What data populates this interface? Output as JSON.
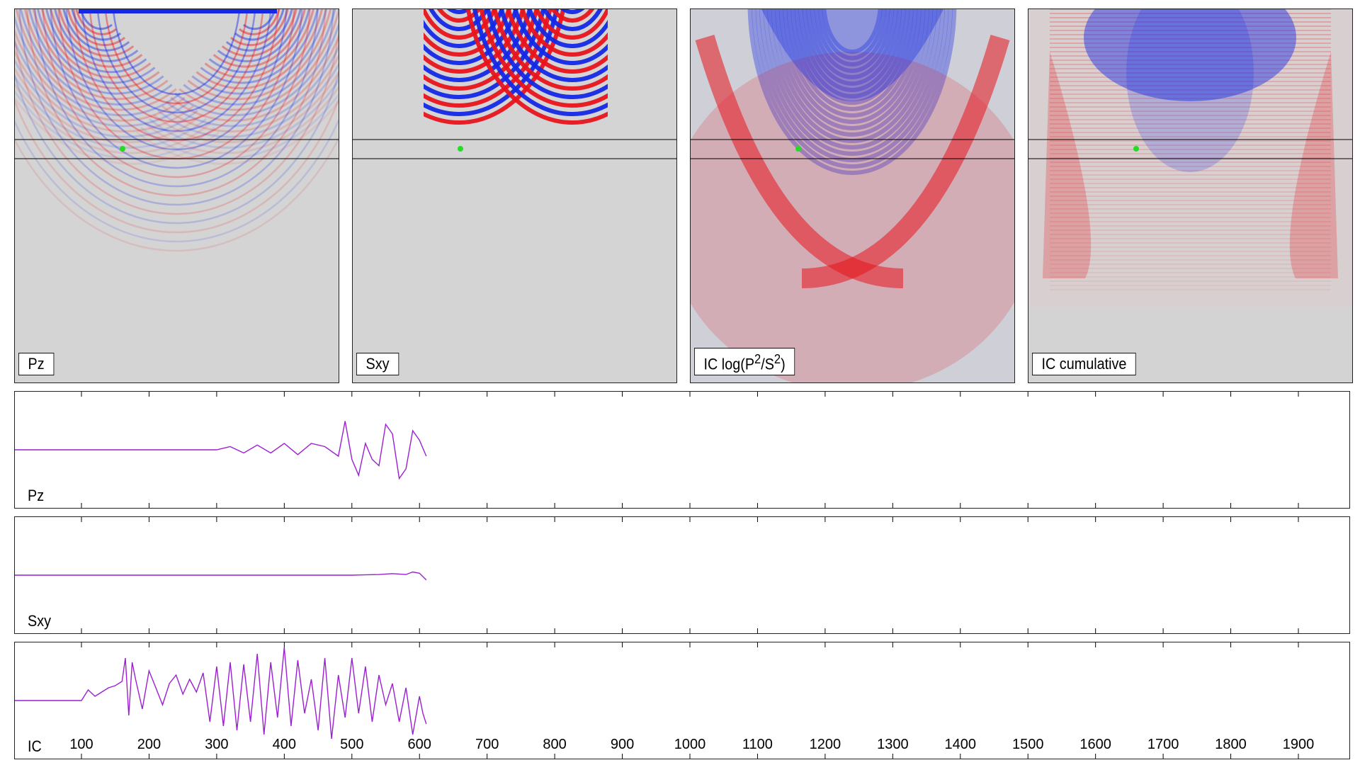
{
  "panels": [
    {
      "label": "Pz",
      "style": "pz"
    },
    {
      "label": "Sxy",
      "style": "sxy"
    },
    {
      "label": "IC log(P2/S2)",
      "label_html": "IC log(P<sup>2</sup>/S<sup>2</sup>)",
      "style": "ic"
    },
    {
      "label": "IC cumulative",
      "style": "cum"
    }
  ],
  "traces": [
    {
      "label": "Pz"
    },
    {
      "label": "Sxy"
    },
    {
      "label": "IC"
    }
  ],
  "colors": {
    "positive": "#e8141c",
    "negative": "#1428e6",
    "background": "#d4d4d4",
    "trace": "#9b1fd1",
    "marker": "#22dd22"
  },
  "chart_data": [
    {
      "type": "line",
      "title": "",
      "ylabel": "Pz",
      "xlim": [
        0,
        2000
      ],
      "x_ticks": [
        100,
        200,
        300,
        400,
        500,
        600,
        700,
        800,
        900,
        1000,
        1100,
        1200,
        1300,
        1400,
        1500,
        1600,
        1700,
        1800,
        1900
      ],
      "series": [
        {
          "x": [
            0,
            300,
            320,
            340,
            360,
            380,
            400,
            420,
            440,
            460,
            480,
            490,
            500,
            510,
            520,
            530,
            540,
            550,
            560,
            570,
            580,
            590,
            600,
            610
          ],
          "y": [
            0,
            0,
            0.1,
            -0.1,
            0.15,
            -0.1,
            0.2,
            -0.15,
            0.2,
            0.1,
            -0.2,
            0.9,
            -0.3,
            -0.8,
            0.2,
            -0.3,
            -0.5,
            0.8,
            0.5,
            -0.9,
            -0.6,
            0.6,
            0.3,
            -0.2
          ]
        }
      ]
    },
    {
      "type": "line",
      "title": "",
      "ylabel": "Sxy",
      "xlim": [
        0,
        2000
      ],
      "x_ticks": [
        100,
        200,
        300,
        400,
        500,
        600,
        700,
        800,
        900,
        1000,
        1100,
        1200,
        1300,
        1400,
        1500,
        1600,
        1700,
        1800,
        1900
      ],
      "series": [
        {
          "x": [
            0,
            500,
            540,
            560,
            580,
            590,
            600,
            610
          ],
          "y": [
            0,
            0,
            0.02,
            0.05,
            0.02,
            0.1,
            0.06,
            -0.15
          ]
        }
      ]
    },
    {
      "type": "line",
      "title": "",
      "ylabel": "IC",
      "xlim": [
        0,
        2000
      ],
      "x_ticks": [
        100,
        200,
        300,
        400,
        500,
        600,
        700,
        800,
        900,
        1000,
        1100,
        1200,
        1300,
        1400,
        1500,
        1600,
        1700,
        1800,
        1900
      ],
      "series": [
        {
          "x": [
            0,
            100,
            110,
            120,
            130,
            140,
            150,
            160,
            165,
            170,
            175,
            180,
            190,
            200,
            210,
            220,
            230,
            240,
            250,
            260,
            270,
            280,
            290,
            300,
            310,
            320,
            330,
            340,
            350,
            360,
            370,
            380,
            390,
            400,
            410,
            420,
            430,
            440,
            450,
            460,
            470,
            480,
            490,
            500,
            510,
            520,
            530,
            540,
            550,
            560,
            570,
            580,
            590,
            600,
            605,
            610
          ],
          "y": [
            0,
            0,
            0.25,
            0.1,
            0.2,
            0.3,
            0.35,
            0.45,
            1.0,
            -0.35,
            0.9,
            0.5,
            -0.2,
            0.7,
            0.3,
            -0.1,
            0.4,
            0.6,
            0.15,
            0.5,
            0.2,
            0.65,
            -0.5,
            0.8,
            -0.6,
            0.9,
            -0.7,
            0.85,
            -0.5,
            1.1,
            -0.8,
            0.9,
            -0.4,
            1.25,
            -0.6,
            0.95,
            -0.3,
            0.5,
            -0.7,
            1.0,
            -0.9,
            0.6,
            -0.4,
            1.0,
            -0.3,
            0.8,
            -0.5,
            0.6,
            -0.1,
            0.4,
            -0.5,
            0.3,
            -0.8,
            0.1,
            -0.3,
            -0.55
          ]
        }
      ]
    }
  ]
}
